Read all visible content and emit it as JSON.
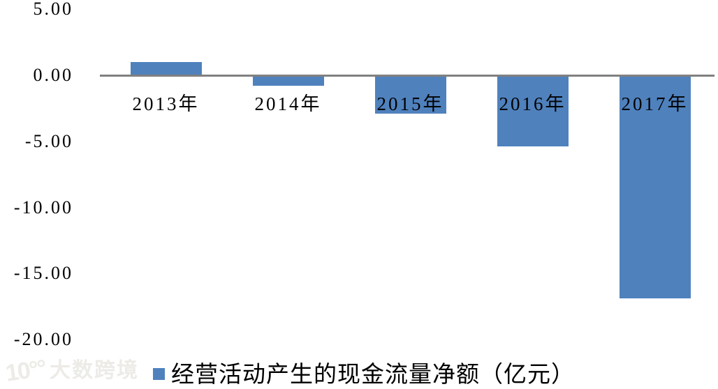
{
  "chart_data": {
    "type": "bar",
    "title": "",
    "xlabel": "",
    "ylabel": "",
    "categories": [
      "2013年",
      "2014年",
      "2015年",
      "2016年",
      "2017年"
    ],
    "series": [
      {
        "name": "经营活动产生的现金流量净额（亿元）",
        "values": [
          1.0,
          -0.7,
          -2.8,
          -5.3,
          -16.8
        ],
        "color": "#4F81BD"
      }
    ],
    "ylim": [
      -20,
      5
    ],
    "yticks": [
      {
        "value": 5,
        "label": "5.00"
      },
      {
        "value": 0,
        "label": "0.00"
      },
      {
        "value": -5,
        "label": "-5.00"
      },
      {
        "value": -10,
        "label": "-10.00"
      },
      {
        "value": -15,
        "label": "-15.00"
      },
      {
        "value": -20,
        "label": "-20.00"
      }
    ],
    "grid": false,
    "legend_position": "bottom",
    "axis_line_color": "#808080",
    "background_color": "#FFFFFF"
  },
  "legend": {
    "marker_color": "#4F81BD"
  },
  "watermark": {
    "logo": "10°°",
    "text": "大数跨境",
    "color": "#EDEBE7"
  }
}
